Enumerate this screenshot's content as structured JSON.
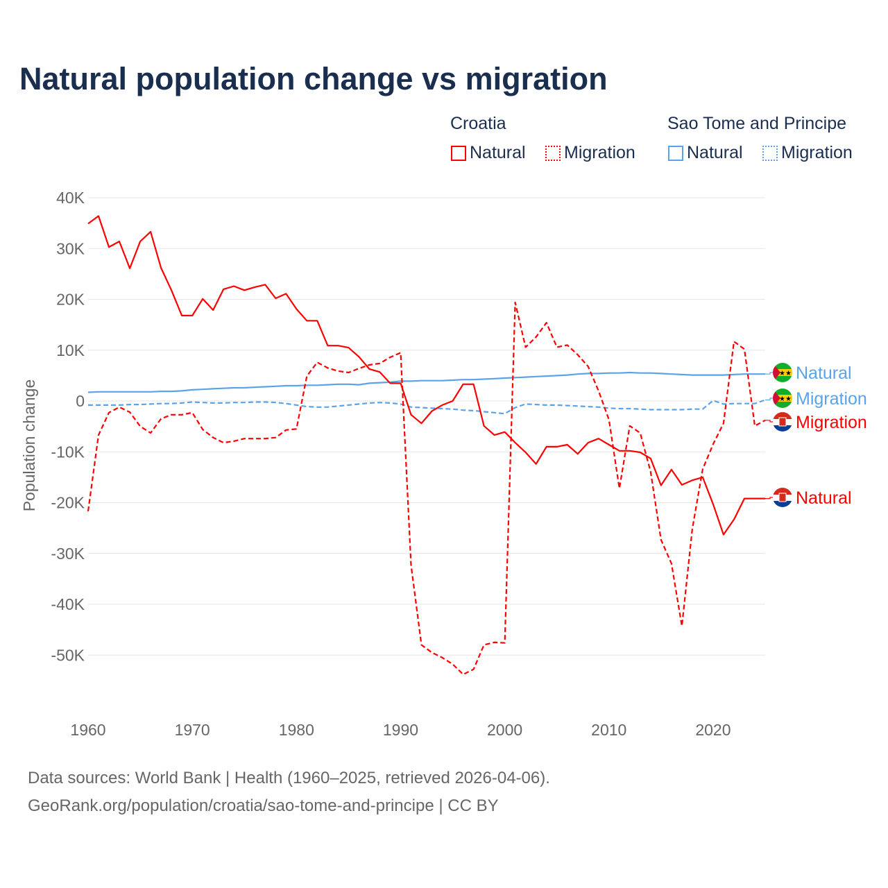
{
  "chart_data": {
    "type": "line",
    "title": "Natural population change vs migration",
    "xlabel": "",
    "ylabel": "Population change",
    "xlim": [
      1960,
      2025
    ],
    "ylim": [
      -57000,
      40000
    ],
    "x_ticks": [
      "1960",
      "1970",
      "1980",
      "1990",
      "2000",
      "2010",
      "2020"
    ],
    "y_ticks": [
      {
        "v": 40000,
        "l": "40K"
      },
      {
        "v": 30000,
        "l": "30K"
      },
      {
        "v": 20000,
        "l": "20K"
      },
      {
        "v": 10000,
        "l": "10K"
      },
      {
        "v": 0,
        "l": "0"
      },
      {
        "v": -10000,
        "l": "-10K"
      },
      {
        "v": -20000,
        "l": "-20K"
      },
      {
        "v": -30000,
        "l": "-30K"
      },
      {
        "v": -40000,
        "l": "-40K"
      },
      {
        "v": -50000,
        "l": "-50K"
      }
    ],
    "grid": true,
    "x_start": 1960,
    "units": "thousands",
    "series": [
      {
        "country": "Croatia",
        "name": "Natural",
        "color": "#ff0000",
        "dashed": false,
        "end_label": "Natural",
        "values": [
          34.9,
          36.4,
          30.3,
          31.4,
          26.1,
          31.4,
          33.3,
          26.2,
          21.8,
          16.8,
          16.8,
          20.1,
          17.9,
          22.0,
          22.6,
          21.8,
          22.4,
          22.9,
          20.2,
          21.1,
          18.1,
          15.8,
          15.8,
          10.9,
          10.9,
          10.5,
          8.7,
          6.3,
          5.7,
          3.5,
          3.5,
          -2.7,
          -4.4,
          -2.0,
          -0.8,
          0.0,
          3.3,
          3.3,
          -4.9,
          -6.7,
          -6.1,
          -8.2,
          -10.1,
          -12.4,
          -9.0,
          -9.0,
          -8.6,
          -10.4,
          -8.2,
          -7.4,
          -8.6,
          -9.8,
          -9.8,
          -10.1,
          -11.3,
          -16.6,
          -13.5,
          -16.5,
          -15.6,
          -15.0,
          -20.3,
          -26.3,
          -23.3,
          -19.2,
          -19.2,
          -19.2
        ]
      },
      {
        "country": "Croatia",
        "name": "Migration",
        "color": "#ff0000",
        "dashed": true,
        "end_label": "Migration",
        "values": [
          -21.7,
          -6.7,
          -2.3,
          -1.2,
          -2.2,
          -5.0,
          -6.3,
          -3.5,
          -2.7,
          -2.7,
          -2.3,
          -5.6,
          -7.2,
          -8.2,
          -7.9,
          -7.4,
          -7.4,
          -7.4,
          -7.2,
          -5.7,
          -5.5,
          4.9,
          7.6,
          6.5,
          5.9,
          5.6,
          6.4,
          7.1,
          7.4,
          8.6,
          9.5,
          -32.3,
          -48.0,
          -49.5,
          -50.5,
          -51.8,
          -53.8,
          -52.8,
          -48.0,
          -47.5,
          -47.6,
          19.4,
          10.6,
          12.6,
          15.4,
          10.6,
          11.0,
          9.1,
          6.8,
          2.0,
          -3.7,
          -17.2,
          -4.9,
          -6.3,
          -13.9,
          -27.3,
          -32.0,
          -44.3,
          -25.2,
          -13.4,
          -8.5,
          -4.4,
          11.7,
          10.2,
          -4.9,
          -3.8
        ]
      },
      {
        "country": "Sao Tome and Principe",
        "name": "Natural",
        "color": "#5ba3e8",
        "dashed": false,
        "end_label": "Natural",
        "values": [
          1.7,
          1.8,
          1.8,
          1.8,
          1.8,
          1.8,
          1.8,
          1.9,
          1.9,
          2.0,
          2.2,
          2.3,
          2.4,
          2.5,
          2.6,
          2.6,
          2.7,
          2.8,
          2.9,
          3.0,
          3.0,
          3.1,
          3.1,
          3.2,
          3.3,
          3.3,
          3.2,
          3.5,
          3.6,
          3.7,
          3.9,
          3.9,
          4.0,
          4.0,
          4.0,
          4.1,
          4.2,
          4.2,
          4.3,
          4.4,
          4.5,
          4.6,
          4.7,
          4.8,
          4.9,
          5.0,
          5.1,
          5.3,
          5.4,
          5.4,
          5.5,
          5.5,
          5.6,
          5.5,
          5.5,
          5.4,
          5.3,
          5.2,
          5.1,
          5.1,
          5.1,
          5.1,
          5.2,
          5.3,
          5.3,
          5.3
        ]
      },
      {
        "country": "Sao Tome and Principe",
        "name": "Migration",
        "color": "#5ba3e8",
        "dashed": true,
        "end_label": "Migration",
        "values": [
          -0.8,
          -0.8,
          -0.8,
          -0.8,
          -0.7,
          -0.7,
          -0.6,
          -0.5,
          -0.5,
          -0.4,
          -0.2,
          -0.3,
          -0.4,
          -0.4,
          -0.3,
          -0.3,
          -0.2,
          -0.2,
          -0.3,
          -0.5,
          -0.8,
          -1.1,
          -1.2,
          -1.2,
          -1.0,
          -0.8,
          -0.6,
          -0.4,
          -0.3,
          -0.4,
          -0.6,
          -1.2,
          -1.3,
          -1.4,
          -1.5,
          -1.6,
          -1.8,
          -1.9,
          -2.1,
          -2.3,
          -2.5,
          -1.3,
          -0.6,
          -0.7,
          -0.8,
          -0.8,
          -0.9,
          -1.0,
          -1.1,
          -1.2,
          -1.4,
          -1.5,
          -1.5,
          -1.6,
          -1.7,
          -1.7,
          -1.7,
          -1.7,
          -1.6,
          -1.6,
          0.1,
          -0.6,
          -0.5,
          -0.5,
          -0.5,
          0.2
        ]
      }
    ]
  },
  "legend": {
    "croatia": "Croatia",
    "stp": "Sao Tome and Principe",
    "natural": "Natural",
    "migration": "Migration"
  },
  "footer": {
    "line1": "Data sources: World Bank | Health (1960–2025, retrieved 2026-04-06).",
    "line2": "GeoRank.org/population/croatia/sao-tome-and-principe | CC BY"
  }
}
